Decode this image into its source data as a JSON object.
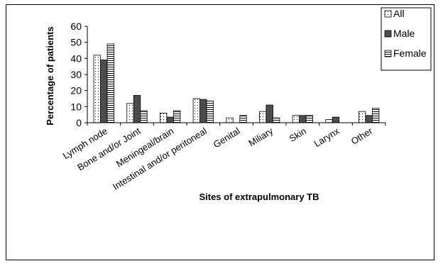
{
  "chart_data": {
    "type": "bar",
    "title": "",
    "xlabel": "Sites of extrapulmonary TB",
    "ylabel": "Percentage of patients",
    "categories": [
      "Lymph node",
      "Bone and/or Joint",
      "Meningeal/brain",
      "Intestinal and/or peritoneal",
      "Genital",
      "Miliary",
      "Skin",
      "Larynx",
      "Other"
    ],
    "series": [
      {
        "name": "All",
        "values": [
          42,
          12,
          6,
          15,
          3,
          7,
          4.5,
          2,
          7
        ],
        "pattern": "dots"
      },
      {
        "name": "Male",
        "values": [
          39,
          17,
          3.5,
          14.5,
          0,
          11,
          4.5,
          3.5,
          4.5
        ],
        "pattern": "dark"
      },
      {
        "name": "Female",
        "values": [
          49,
          7.5,
          7.5,
          13.5,
          4.5,
          3,
          4.5,
          0,
          9
        ],
        "pattern": "hlines"
      }
    ],
    "ylim": [
      0,
      60
    ],
    "yticks": [
      0,
      10,
      20,
      30,
      40,
      50,
      60
    ],
    "legend_position": "top-right",
    "grid": false
  }
}
